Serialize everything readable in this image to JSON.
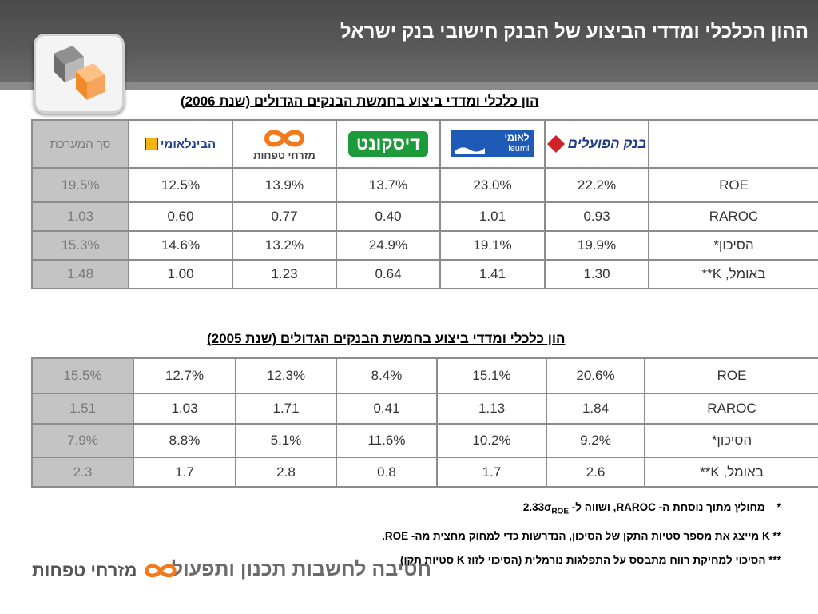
{
  "header": {
    "title": "ההון הכלכלי ומדדי הביצוע של הבנק חישובי בנק ישראל"
  },
  "bank_logos": {
    "hapoalim": "בנק הפועלים",
    "leumi_he": "לאומי",
    "leumi_en": "leumi",
    "discount": "דיסקונט",
    "mizrahi": "מזרחי טפחות",
    "first_intl": "הבינלאומי"
  },
  "table_2006": {
    "title": "הון כלכלי ומדדי ביצוע בחמשת הבנקים הגדולים (שנת 2006)",
    "system_header": "סך המערכת",
    "rows": [
      {
        "label": "ROE",
        "values": [
          "22.2%",
          "23.0%",
          "13.7%",
          "13.9%",
          "12.5%"
        ],
        "system": "19.5%"
      },
      {
        "label": "RAROC",
        "values": [
          "0.93",
          "1.01",
          "0.40",
          "0.77",
          "0.60"
        ],
        "system": "1.03"
      },
      {
        "label": "הסיכון*",
        "values": [
          "19.9%",
          "19.1%",
          "24.9%",
          "13.2%",
          "14.6%"
        ],
        "system": "15.3%"
      },
      {
        "label": "באומל, K**",
        "values": [
          "1.30",
          "1.41",
          "0.64",
          "1.23",
          "1.00"
        ],
        "system": "1.48"
      }
    ]
  },
  "table_2005": {
    "title": "הון כלכלי ומדדי ביצוע בחמשת הבנקים הגדולים (שנת 2005)",
    "rows": [
      {
        "label": "ROE",
        "values": [
          "20.6%",
          "15.1%",
          "8.4%",
          "12.3%",
          "12.7%"
        ],
        "system": "15.5%"
      },
      {
        "label": "RAROC",
        "values": [
          "1.84",
          "1.13",
          "0.41",
          "1.71",
          "1.03"
        ],
        "system": "1.51"
      },
      {
        "label": "הסיכון*",
        "values": [
          "9.2%",
          "10.2%",
          "11.6%",
          "5.1%",
          "8.8%"
        ],
        "system": "7.9%"
      },
      {
        "label": "באומל, K**",
        "values": [
          "2.6",
          "1.7",
          "0.8",
          "2.8",
          "1.7"
        ],
        "system": "2.3"
      }
    ]
  },
  "footnotes": {
    "fn1_marker": "*",
    "fn1_text": "מחולץ מתוך נוסחת ה- RAROC, ושווה ל- 2.33σ",
    "fn1_sub": "ROE",
    "fn2": "** K מייצג את מספר סטיות התקן של הסיכון, הנדרשות כדי למחוק מחצית מה- ROE.",
    "fn3": "*** הסיכוי למחיקת רווח מתבסס על התפלגות נורמלית (הסיכוי לזוז K סטיות תקן)"
  },
  "footer": {
    "division": "חטיבה לחשבות תכנון ותפעול",
    "brand": "מזרחי טפחות"
  },
  "colors": {
    "system_column": "#c4c4c4",
    "table_border": "#8c8c8c",
    "hapoalim_red": "#d2232a",
    "leumi_blue": "#1e5bb6",
    "discount_green": "#1d9a3a",
    "mizrahi_orange": "#f27a1a",
    "first_intl_yellow": "#f6b40e"
  }
}
